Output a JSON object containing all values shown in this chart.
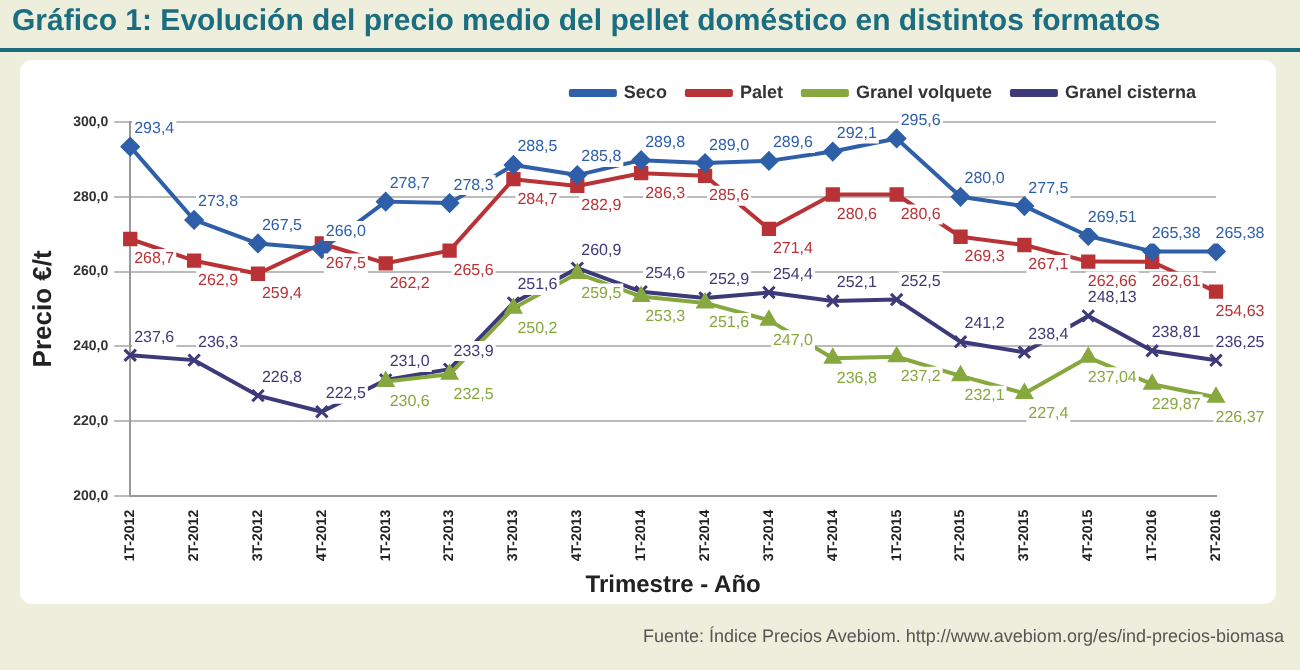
{
  "chart_data": {
    "type": "line",
    "title": "Gráfico 1: Evolución del precio medio del pellet doméstico en distintos formatos",
    "xlabel": "Trimestre - Año",
    "ylabel": "Precio €/t",
    "annotations": [
      "Fuente: Índice Precios Avebiom. http://www.avebiom.org/es/ind-precios-biomasa"
    ],
    "categories": [
      "1T-2012",
      "2T-2012",
      "3T-2012",
      "4T-2012",
      "1T-2013",
      "2T-2013",
      "3T-2013",
      "4T-2013",
      "1T-2014",
      "2T-2014",
      "3T-2014",
      "4T-2014",
      "1T-2015",
      "2T-2015",
      "3T-2015",
      "4T-2015",
      "1T-2016",
      "2T-2016"
    ],
    "series": [
      {
        "name": "Seco",
        "color": "#2e5fa8",
        "marker": "diamond",
        "values": [
          293.4,
          273.8,
          267.5,
          266.0,
          278.7,
          278.3,
          288.5,
          285.8,
          289.8,
          289.0,
          289.6,
          292.1,
          295.6,
          280.0,
          277.5,
          269.51,
          265.38,
          265.38
        ],
        "value_labels": [
          "293,4",
          "273,8",
          "267,5",
          "266,0",
          "278,7",
          "278,3",
          "288,5",
          "285,8",
          "289,8",
          "289,0",
          "289,6",
          "292,1",
          "295,6",
          "280,0",
          "277,5",
          "269,51",
          "265,38",
          "265,38"
        ]
      },
      {
        "name": "Palet",
        "color": "#b83236",
        "marker": "square",
        "values": [
          268.7,
          262.9,
          259.4,
          267.5,
          262.2,
          265.6,
          284.7,
          282.9,
          286.3,
          285.6,
          271.4,
          280.6,
          280.6,
          269.3,
          267.1,
          262.66,
          262.61,
          254.63
        ],
        "value_labels": [
          "268,7",
          "262,9",
          "259,4",
          "267,5",
          "262,2",
          "265,6",
          "284,7",
          "282,9",
          "286,3",
          "285,6",
          "271,4",
          "280,6",
          "280,6",
          "269,3",
          "267,1",
          "262,66",
          "262,61",
          "254,63"
        ]
      },
      {
        "name": "Granel volquete",
        "color": "#86a83e",
        "marker": "triangle",
        "values": [
          null,
          null,
          null,
          null,
          230.6,
          232.5,
          250.2,
          259.5,
          253.3,
          251.6,
          247.0,
          236.8,
          237.2,
          232.1,
          227.4,
          237.04,
          229.87,
          226.37
        ],
        "value_labels": [
          null,
          null,
          null,
          null,
          "230,6",
          "232,5",
          "250,2",
          "259,5",
          "253,3",
          "251,6",
          "247,0",
          "236,8",
          "237,2",
          "232,1",
          "227,4",
          "237,04",
          "229,87",
          "226,37"
        ]
      },
      {
        "name": "Granel cisterna",
        "color": "#3d3a7a",
        "marker": "cross",
        "values": [
          237.6,
          236.3,
          226.8,
          222.5,
          231.0,
          233.9,
          251.6,
          260.9,
          254.6,
          252.9,
          254.4,
          252.1,
          252.5,
          241.2,
          238.4,
          248.13,
          238.81,
          236.25
        ],
        "value_labels": [
          "237,6",
          "236,3",
          "226,8",
          "222,5",
          "231,0",
          "233,9",
          "251,6",
          "260,9",
          "254,6",
          "252,9",
          "254,4",
          "252,1",
          "252,5",
          "241,2",
          "238,4",
          "248,13",
          "238,81",
          "236,25"
        ]
      }
    ],
    "ylim": [
      200,
      300
    ],
    "yticks": [
      {
        "value": 200,
        "label": "200,0"
      },
      {
        "value": 220,
        "label": "220,0"
      },
      {
        "value": 240,
        "label": "240,0"
      },
      {
        "value": 260,
        "label": "260,0"
      },
      {
        "value": 280,
        "label": "280,0"
      },
      {
        "value": 300,
        "label": "300,0"
      }
    ],
    "grid": "y",
    "legend": "top right",
    "line_style": "solid"
  }
}
